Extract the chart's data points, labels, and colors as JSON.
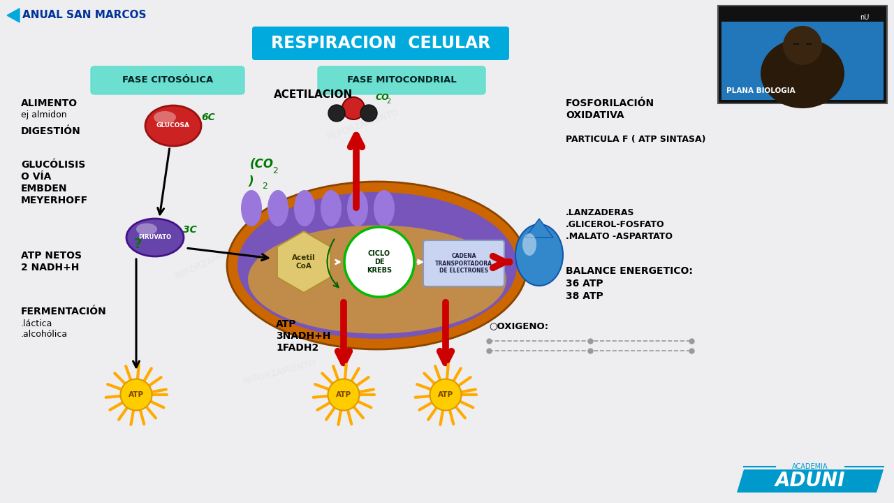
{
  "bg_color": "#eeeef0",
  "title": "RESPIRACION  CELULAR",
  "title_bg": "#00aadd",
  "title_color": "white",
  "header_left": "ANUAL SAN MARCOS",
  "fase_citosol": "FASE CITOSÓLICA",
  "fase_mito": "FASE MITOCONDRIAL",
  "glucosa_label": "GLUCOSA",
  "piruvato_label": "PIRUVATO",
  "acetil_label": "Acetil\nCoA",
  "krebs_label": "CICLO\nDE\nKREBS",
  "cadena_label": "CADENA\nTRANSPORTADORA\nDE ELECTRONES",
  "acetilacion_label": "ACETILACION",
  "oxigeno_label": "○OXIGENO:",
  "plana_label": "PLANA BIOLOGIA",
  "aduni_label": "ADUNI",
  "academia_label": "ACADEMIA",
  "color_bg": "#eeeef0",
  "color_mito_outer": "#cc6600",
  "color_mito_inner": "#7755bb",
  "color_mito_bump": "#9977dd",
  "color_mito_matrix": "#c89040",
  "color_glucosa": "#cc2222",
  "color_piruvato": "#6644aa",
  "color_acetil_bg": "#e0c870",
  "color_acetil_edge": "#b09030",
  "color_krebs_bg": "white",
  "color_krebs_edge": "#00bb00",
  "color_cadena_bg": "#c8d4f0",
  "color_cadena_edge": "#8899bb",
  "color_red_arrow": "#cc0000",
  "color_black_arrow": "#111111",
  "color_water": "#3388cc",
  "color_atp_center": "#ffcc00",
  "color_atp_ray": "#ffaa00",
  "color_fase_box": "#55ddcc",
  "color_co2_red": "#cc2222",
  "color_co2_black": "#222222",
  "color_green_text": "#007700",
  "color_header_blue": "#003399",
  "color_aduni_blue": "#0099cc"
}
